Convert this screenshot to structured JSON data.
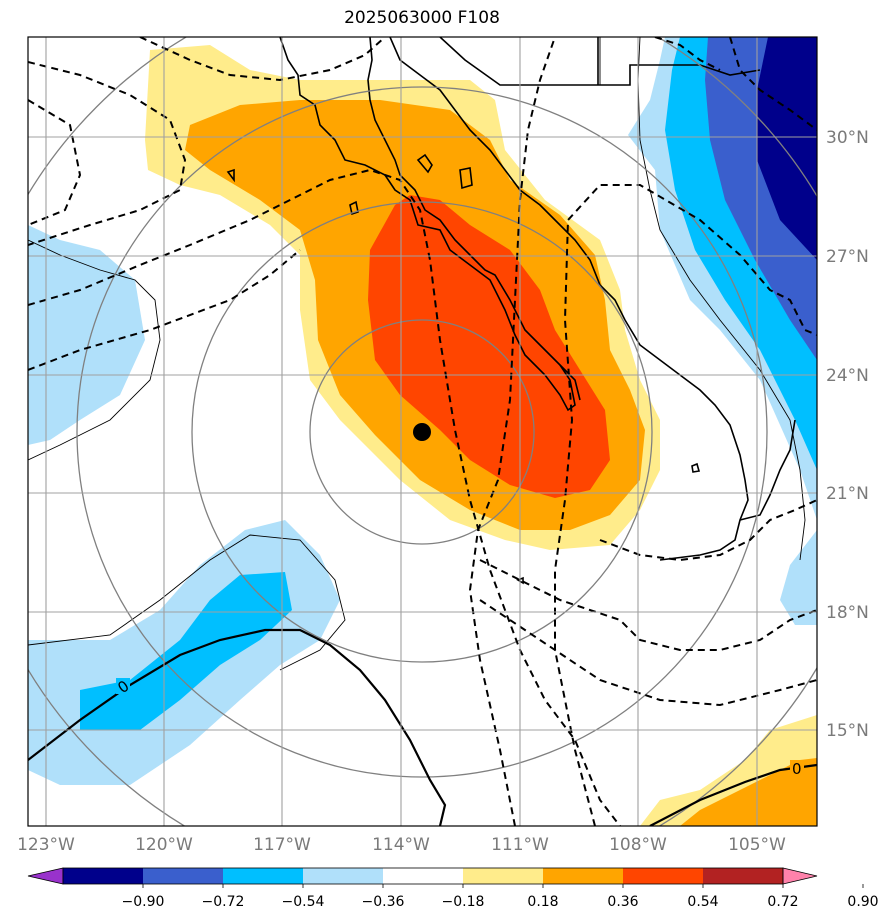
{
  "title": "2025063000 F108",
  "lat_labels": [
    "30°N",
    "27°N",
    "24°N",
    "21°N",
    "18°N",
    "15°N"
  ],
  "lon_labels": [
    "123°W",
    "120°W",
    "117°W",
    "114°W",
    "111°W",
    "108°W",
    "105°W"
  ],
  "contour_labels": [
    "0",
    "0"
  ],
  "colorbar": {
    "ticks": [
      "−0.90",
      "−0.72",
      "−0.54",
      "−0.36",
      "−0.18",
      "0.18",
      "0.36",
      "0.54",
      "0.72",
      "0.90"
    ],
    "colors": [
      "#9932cc",
      "#00008b",
      "#3a5fcd",
      "#00bfff",
      "#b0e0fa",
      "#ffffff",
      "#ffec8b",
      "#ffa500",
      "#ff4500",
      "#b22222",
      "#ff82ab"
    ]
  },
  "map": {
    "lat_range": [
      12.6,
      32.6
    ],
    "lon_range": [
      -123.5,
      -103.5
    ],
    "center_marker": {
      "lat": 22.5,
      "lon": -113.5
    }
  }
}
